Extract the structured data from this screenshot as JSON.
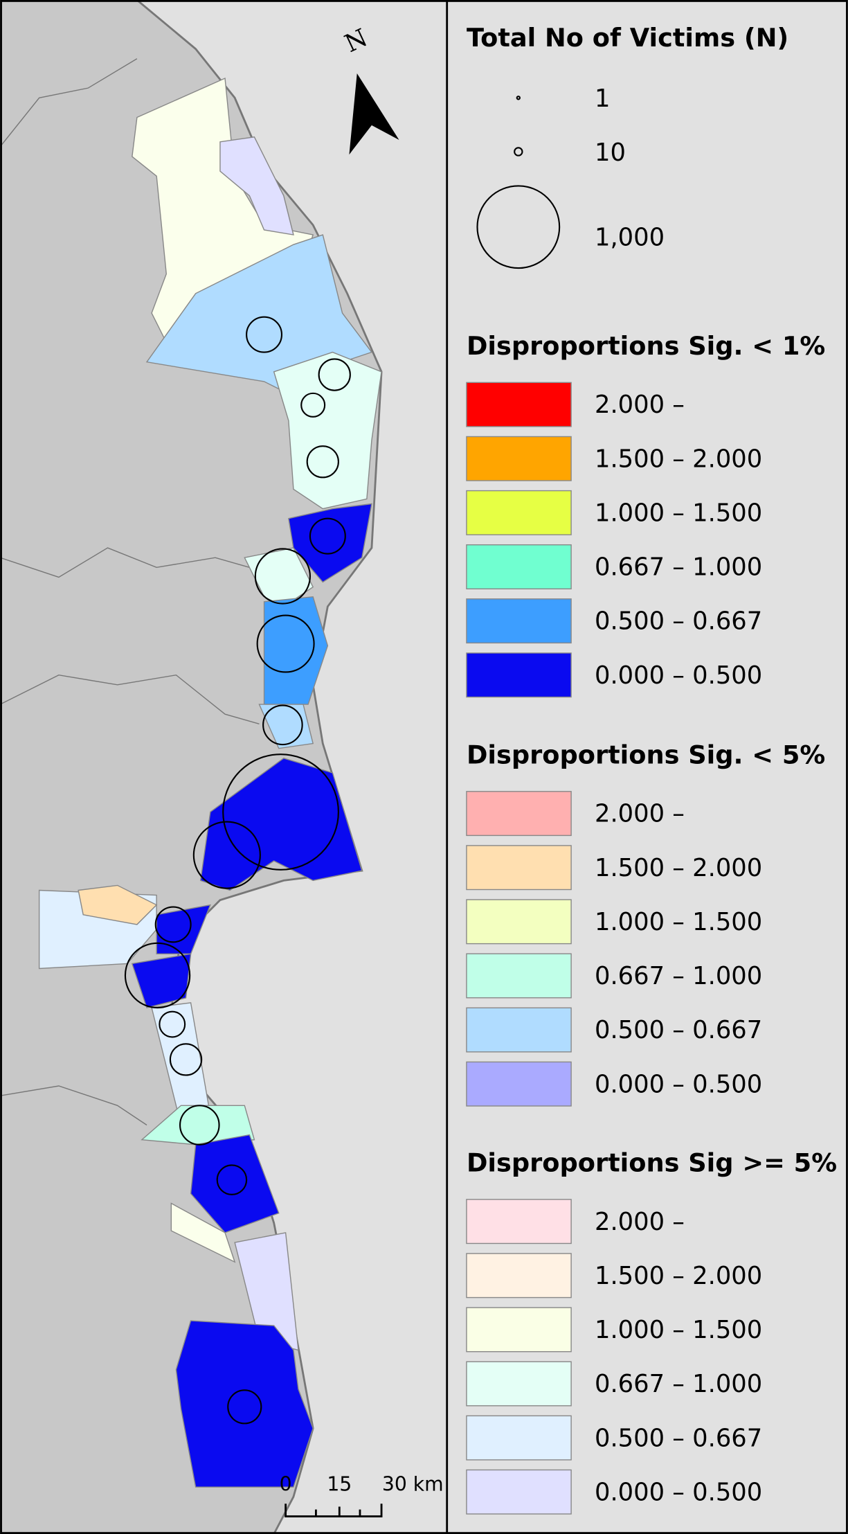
{
  "legend": {
    "size": {
      "title": "Total No of Victims (N)",
      "items": [
        {
          "label": "1"
        },
        {
          "label": "10"
        },
        {
          "label": "1,000"
        }
      ]
    },
    "sections": [
      {
        "title": "Disproportions Sig. < 1%",
        "items": [
          {
            "label": "2.000 –",
            "color": "#ff0000"
          },
          {
            "label": "1.500 – 2.000",
            "color": "#ffa500"
          },
          {
            "label": "1.000 – 1.500",
            "color": "#e6ff44"
          },
          {
            "label": "0.667 – 1.000",
            "color": "#70ffd0"
          },
          {
            "label": "0.500 – 0.667",
            "color": "#3d9eff"
          },
          {
            "label": "0.000 – 0.500",
            "color": "#0a0af0"
          }
        ]
      },
      {
        "title": "Disproportions Sig. < 5%",
        "items": [
          {
            "label": "2.000 –",
            "color": "#ffb0b0"
          },
          {
            "label": "1.500 – 2.000",
            "color": "#ffdfb0"
          },
          {
            "label": "1.000 – 1.500",
            "color": "#f3ffc0"
          },
          {
            "label": "0.667 – 1.000",
            "color": "#c0ffe8"
          },
          {
            "label": "0.500 – 0.667",
            "color": "#b0dcff"
          },
          {
            "label": "0.000 – 0.500",
            "color": "#aaaaff"
          }
        ]
      },
      {
        "title": "Disproportions Sig >= 5%",
        "items": [
          {
            "label": "2.000 –",
            "color": "#ffe0e6"
          },
          {
            "label": "1.500 – 2.000",
            "color": "#fff2e3"
          },
          {
            "label": "1.000 – 1.500",
            "color": "#faffe6"
          },
          {
            "label": "0.667 – 1.000",
            "color": "#e4fff6"
          },
          {
            "label": "0.500 – 0.667",
            "color": "#e0f0ff"
          },
          {
            "label": "0.000 – 0.500",
            "color": "#e0e0ff"
          }
        ]
      }
    ]
  },
  "scale_bar": {
    "labels": [
      "0",
      "15",
      "30 km"
    ]
  },
  "north_arrow": {
    "label": "N"
  }
}
